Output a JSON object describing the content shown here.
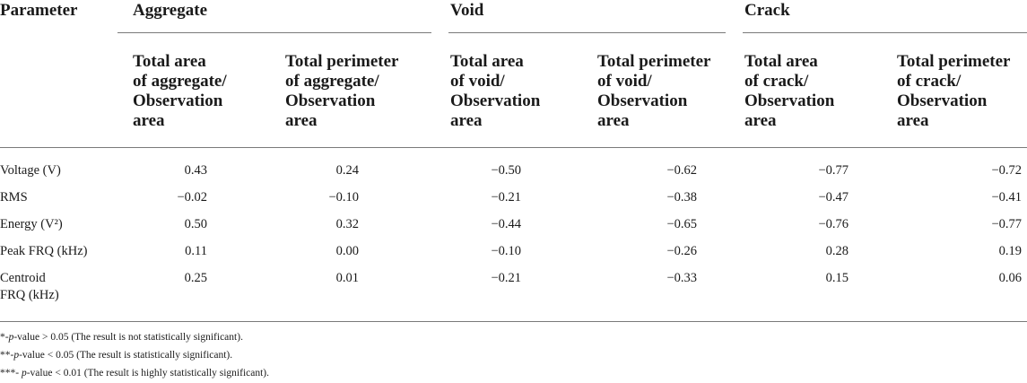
{
  "table": {
    "param_header": "Parameter",
    "groups": [
      {
        "label": "Aggregate"
      },
      {
        "label": "Void"
      },
      {
        "label": "Crack"
      }
    ],
    "subheaders": [
      "Total area\nof aggregate/\nObservation\narea",
      "Total perimeter\nof aggregate/\nObservation\narea",
      "Total area\nof void/\nObservation\narea",
      "Total perimeter\nof void/\nObservation\narea",
      "Total area\nof crack/\nObservation\narea",
      "Total perimeter\nof crack/\nObservation\narea"
    ],
    "rows": [
      {
        "label": "Voltage (V)",
        "values": [
          "0.43",
          "0.24",
          "−0.50",
          "−0.62",
          "−0.77",
          "−0.72"
        ]
      },
      {
        "label": "RMS",
        "values": [
          "−0.02",
          "−0.10",
          "−0.21",
          "−0.38",
          "−0.47",
          "−0.41"
        ]
      },
      {
        "label": "Energy (V²)",
        "values": [
          "0.50",
          "0.32",
          "−0.44",
          "−0.65",
          "−0.76",
          "−0.77"
        ]
      },
      {
        "label": "Peak FRQ (kHz)",
        "values": [
          "0.11",
          "0.00",
          "−0.10",
          "−0.26",
          "0.28",
          "0.19"
        ]
      },
      {
        "label": "Centroid",
        "label2": "FRQ (kHz)",
        "values": [
          "0.25",
          "0.01",
          "−0.21",
          "−0.33",
          "0.15",
          "0.06"
        ]
      }
    ]
  },
  "footnotes": [
    {
      "prefix": "*-",
      "p": "p",
      "rest": "-value > 0.05 (The result is not statistically significant)."
    },
    {
      "prefix": "**-",
      "p": "p",
      "rest": "-value < 0.05 (The result is statistically significant)."
    },
    {
      "prefix": "***- ",
      "p": "p",
      "rest": "-value < 0.01 (The result is highly statistically significant)."
    }
  ]
}
